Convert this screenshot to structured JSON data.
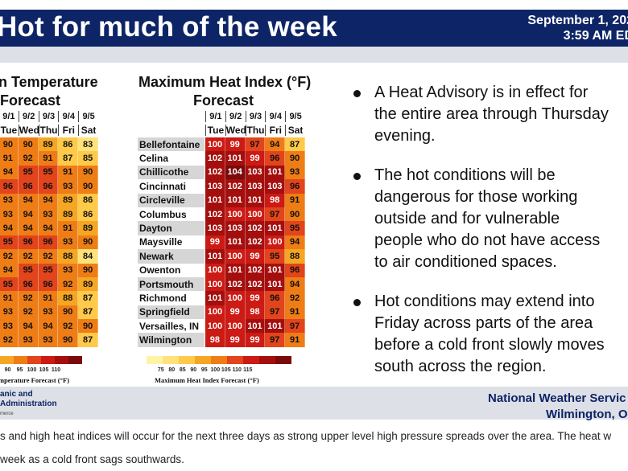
{
  "header": {
    "title": "Hot for much of the week",
    "date": "September 1, 202",
    "time": "3:59 AM ED"
  },
  "left_panel": {
    "title_line1": "n Temperature",
    "title_line2": "Forecast",
    "dates": [
      "9/1",
      "9/2",
      "9/3",
      "9/4",
      "9/5"
    ],
    "days": [
      "Tue",
      "Wed",
      "Thu",
      "Fri",
      "Sat"
    ],
    "rows": [
      [
        90,
        90,
        89,
        86,
        83
      ],
      [
        91,
        92,
        91,
        87,
        85
      ],
      [
        94,
        95,
        95,
        91,
        90
      ],
      [
        96,
        96,
        96,
        93,
        90
      ],
      [
        93,
        94,
        94,
        89,
        86
      ],
      [
        93,
        94,
        93,
        89,
        86
      ],
      [
        94,
        94,
        94,
        91,
        89
      ],
      [
        95,
        96,
        96,
        93,
        90
      ],
      [
        92,
        92,
        92,
        88,
        84
      ],
      [
        94,
        95,
        95,
        93,
        90
      ],
      [
        95,
        96,
        96,
        92,
        89
      ],
      [
        91,
        92,
        91,
        88,
        87
      ],
      [
        93,
        92,
        93,
        90,
        87
      ],
      [
        93,
        94,
        94,
        92,
        90
      ],
      [
        92,
        93,
        93,
        90,
        87
      ]
    ],
    "legend_ticks": [
      "90",
      "95",
      "100",
      "105",
      "110"
    ],
    "legend_title": "mperature Forecast (°F)"
  },
  "right_panel": {
    "title_line1": "Maximum Heat Index (°F)",
    "title_line2": "Forecast",
    "dates": [
      "9/1",
      "9/2",
      "9/3",
      "9/4",
      "9/5"
    ],
    "days": [
      "Tue",
      "Wed",
      "Thu",
      "Fri",
      "Sat"
    ],
    "locations": [
      "Bellefontaine",
      "Celina",
      "Chillicothe",
      "Cincinnati",
      "Circleville",
      "Columbus",
      "Dayton",
      "Maysville",
      "Newark",
      "Owenton",
      "Portsmouth",
      "Richmond",
      "Springfield",
      "Versailles, IN",
      "Wilmington"
    ],
    "rows": [
      [
        100,
        99,
        97,
        94,
        87
      ],
      [
        102,
        101,
        99,
        96,
        90
      ],
      [
        102,
        104,
        103,
        101,
        93
      ],
      [
        103,
        102,
        103,
        103,
        96
      ],
      [
        101,
        101,
        101,
        98,
        91
      ],
      [
        102,
        100,
        100,
        97,
        90
      ],
      [
        103,
        103,
        102,
        101,
        95
      ],
      [
        99,
        101,
        102,
        100,
        94
      ],
      [
        101,
        100,
        99,
        95,
        88
      ],
      [
        100,
        101,
        102,
        101,
        96
      ],
      [
        100,
        102,
        102,
        101,
        94
      ],
      [
        101,
        100,
        99,
        96,
        92
      ],
      [
        100,
        99,
        98,
        97,
        91
      ],
      [
        100,
        100,
        101,
        101,
        97
      ],
      [
        98,
        99,
        99,
        97,
        91
      ]
    ],
    "legend_ticks": [
      "75",
      "80",
      "85",
      "90",
      "95",
      "100",
      "105",
      "110",
      "115"
    ],
    "legend_title": "Maximum Heat Index Forecast (°F)"
  },
  "bullets": [
    [
      "A Heat Advisory is in effect for",
      "the entire area through Thursday",
      "evening."
    ],
    [
      "The hot conditions will be",
      "dangerous for those working",
      "outside and for vulnerable",
      "people who do not have access",
      "to air conditioned spaces."
    ],
    [
      "Hot conditions may extend into",
      "Friday across parts of the area",
      "before a cold front slowly moves",
      "south across the region."
    ]
  ],
  "footer": {
    "noaa_line1": "anic and",
    "noaa_line2": "Administration",
    "noaa_line3": "merce",
    "nws_line1": "National Weather Servic",
    "nws_line2": "Wilmington, O"
  },
  "caption": {
    "line1": "s and high heat indices will occur for the next three days as strong upper level high pressure spreads over the area. The heat w",
    "line2": "week as a cold front sags southwards."
  },
  "colors": {
    "header_bg": "#0d2466",
    "band": "#dde0e6",
    "scale": [
      "#fff3a6",
      "#ffe27a",
      "#ffc94a",
      "#f5a623",
      "#ef7d16",
      "#e2441b",
      "#cc1a14",
      "#a40f0e",
      "#7b0a0a"
    ]
  }
}
